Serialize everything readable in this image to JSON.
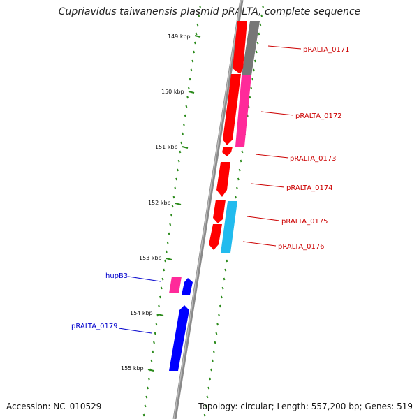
{
  "title": "Cupriavidus taiwanensis plasmid pRALTA, complete sequence",
  "footer": {
    "accession": "Accession: NC_010529",
    "summary": "Topology: circular; Length: 557,200 bp; Genes: 519"
  },
  "colors": {
    "backbone": "#8a8a8a",
    "tick": "#2a8a1a",
    "forward_gene_label": "#cc0000",
    "reverse_gene_label": "#0000cc",
    "gene_red": "#ff0000",
    "gene_grey": "#777777",
    "gene_pink": "#ff2a9a",
    "gene_blue": "#0000ff",
    "gene_cyan": "#22bbee"
  },
  "scale_labels": [
    "149 kbp",
    "150 kbp",
    "151 kbp",
    "152 kbp",
    "153 kbp",
    "154 kbp",
    "155 kbp"
  ],
  "gene_labels": [
    {
      "text": "pRALTA_0171",
      "strand": "forward"
    },
    {
      "text": "pRALTA_0172",
      "strand": "forward"
    },
    {
      "text": "pRALTA_0173",
      "strand": "forward"
    },
    {
      "text": "pRALTA_0174",
      "strand": "forward"
    },
    {
      "text": "pRALTA_0175",
      "strand": "forward"
    },
    {
      "text": "pRALTA_0176",
      "strand": "forward"
    },
    {
      "text": "hupB3",
      "strand": "reverse"
    },
    {
      "text": "pRALTA_0179",
      "strand": "reverse"
    }
  ]
}
